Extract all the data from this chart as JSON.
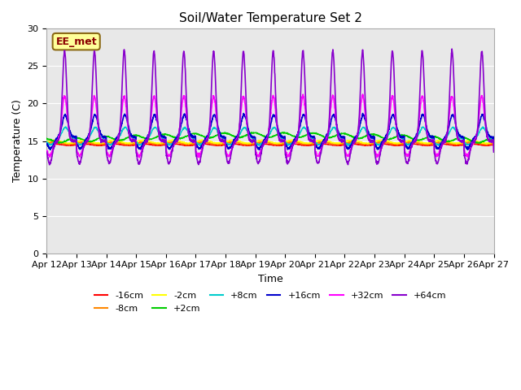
{
  "title": "Soil/Water Temperature Set 2",
  "xlabel": "Time",
  "ylabel": "Temperature (C)",
  "ylim": [
    0,
    30
  ],
  "yticks": [
    0,
    5,
    10,
    15,
    20,
    25,
    30
  ],
  "date_labels": [
    "Apr 12",
    "Apr 13",
    "Apr 14",
    "Apr 15",
    "Apr 16",
    "Apr 17",
    "Apr 18",
    "Apr 19",
    "Apr 20",
    "Apr 21",
    "Apr 22",
    "Apr 23",
    "Apr 24",
    "Apr 25",
    "Apr 26",
    "Apr 27"
  ],
  "n_days": 15,
  "annotation_text": "EE_met",
  "annotation_color": "#8B0000",
  "annotation_bg": "#FFFF99",
  "bg_color": "#E8E8E8",
  "series": [
    {
      "label": "-16cm",
      "color": "#FF0000"
    },
    {
      "label": "-8cm",
      "color": "#FF8800"
    },
    {
      "label": "-2cm",
      "color": "#FFFF00"
    },
    {
      "label": "+2cm",
      "color": "#00CC00"
    },
    {
      "label": "+8cm",
      "color": "#00CCCC"
    },
    {
      "label": "+16cm",
      "color": "#0000CC"
    },
    {
      "label": "+32cm",
      "color": "#FF00FF"
    },
    {
      "label": "+64cm",
      "color": "#8800CC"
    }
  ]
}
